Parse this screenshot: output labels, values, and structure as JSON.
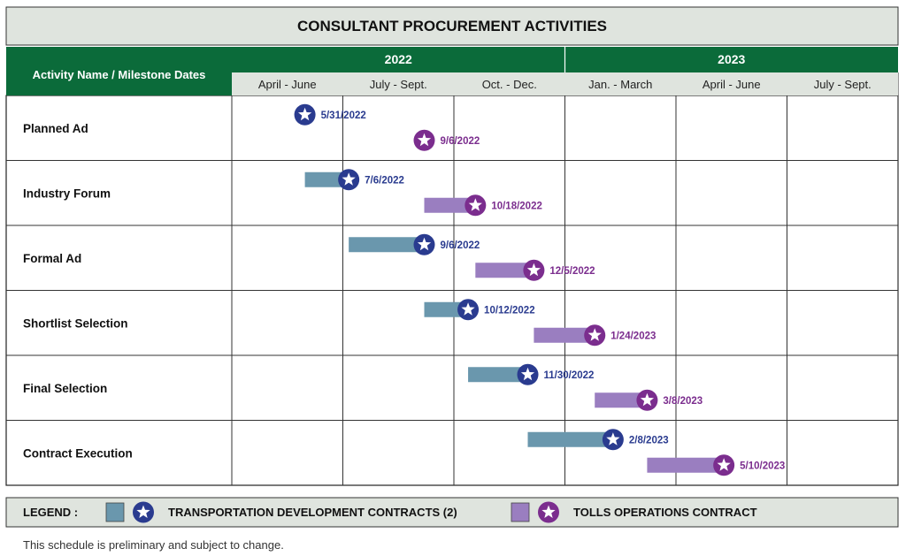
{
  "title": "CONSULTANT PROCUREMENT ACTIVITIES",
  "header_label": "Activity Name / Milestone Dates",
  "years": [
    {
      "label": "2022",
      "span": 3
    },
    {
      "label": "2023",
      "span": 3
    }
  ],
  "quarters": [
    "April - June",
    "July - Sept.",
    "Oct. - Dec.",
    "Jan. - March",
    "April - June",
    "July - Sept."
  ],
  "legend": {
    "label": "LEGEND :",
    "items": [
      {
        "text": "TRANSPORTATION DEVELOPMENT CONTRACTS (2)",
        "series": "tdc"
      },
      {
        "text": "TOLLS OPERATIONS CONTRACT",
        "series": "toc"
      }
    ]
  },
  "note": "This schedule is preliminary and subject to change.",
  "colors": {
    "header_green": "#0b6b3a",
    "title_bg": "#dfe4de",
    "quarter_bg": "#dfe4de",
    "tdc_bar": "#6a97ad",
    "tdc_star": "#2a3b8f",
    "toc_bar": "#9a7ec0",
    "toc_star": "#7b2d8e"
  },
  "chart_data": {
    "type": "gantt",
    "x_axis_start": "2022-04-01",
    "x_axis_end": "2023-09-30",
    "categories": [
      "Planned Ad",
      "Industry Forum",
      "Formal Ad",
      "Shortlist Selection",
      "Final Selection",
      "Contract Execution"
    ],
    "series": [
      {
        "name": "TRANSPORTATION DEVELOPMENT CONTRACTS (2)",
        "key": "tdc",
        "tasks": [
          {
            "activity": "Planned Ad",
            "start": null,
            "end": "2022-05-31",
            "label": "5/31/2022"
          },
          {
            "activity": "Industry Forum",
            "start": "2022-05-31",
            "end": "2022-07-06",
            "label": "7/6/2022"
          },
          {
            "activity": "Formal Ad",
            "start": "2022-07-06",
            "end": "2022-09-06",
            "label": "9/6/2022"
          },
          {
            "activity": "Shortlist Selection",
            "start": "2022-09-06",
            "end": "2022-10-12",
            "label": "10/12/2022"
          },
          {
            "activity": "Final Selection",
            "start": "2022-10-12",
            "end": "2022-11-30",
            "label": "11/30/2022"
          },
          {
            "activity": "Contract Execution",
            "start": "2022-11-30",
            "end": "2023-02-08",
            "label": "2/8/2023"
          }
        ]
      },
      {
        "name": "TOLLS OPERATIONS CONTRACT",
        "key": "toc",
        "tasks": [
          {
            "activity": "Planned Ad",
            "start": null,
            "end": "2022-09-06",
            "label": "9/6/2022"
          },
          {
            "activity": "Industry Forum",
            "start": "2022-09-06",
            "end": "2022-10-18",
            "label": "10/18/2022"
          },
          {
            "activity": "Formal Ad",
            "start": "2022-10-18",
            "end": "2022-12-05",
            "label": "12/5/2022"
          },
          {
            "activity": "Shortlist Selection",
            "start": "2022-12-05",
            "end": "2023-01-24",
            "label": "1/24/2023"
          },
          {
            "activity": "Final Selection",
            "start": "2023-01-24",
            "end": "2023-03-08",
            "label": "3/8/2023"
          },
          {
            "activity": "Contract Execution",
            "start": "2023-03-08",
            "end": "2023-05-10",
            "label": "5/10/2023"
          }
        ]
      }
    ]
  }
}
